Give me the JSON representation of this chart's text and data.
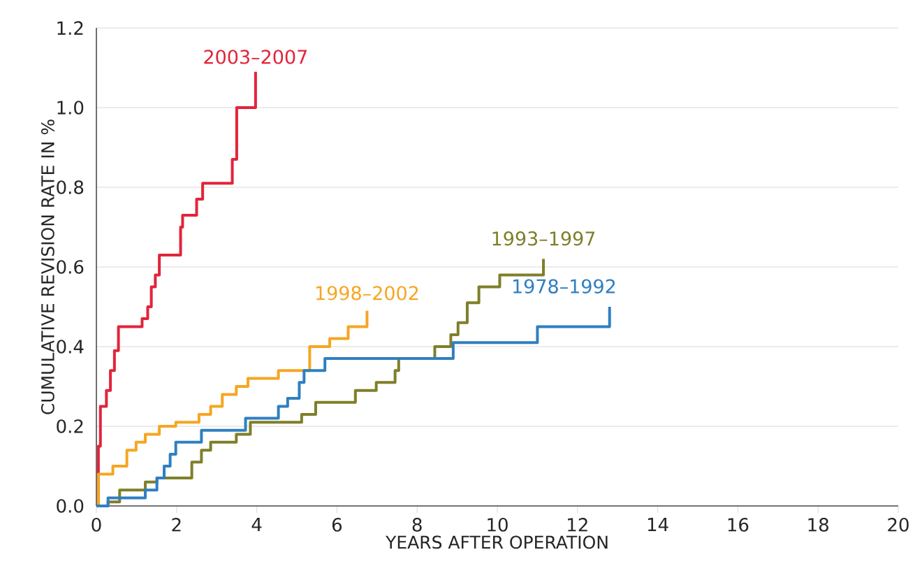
{
  "chart_data": {
    "type": "step",
    "xlabel": "YEARS AFTER OPERATION",
    "ylabel": "CUMULATIVE REVISION RATE IN %",
    "xlim": [
      0,
      20
    ],
    "xticks": [
      0,
      2,
      4,
      6,
      8,
      10,
      12,
      14,
      16,
      18,
      20
    ],
    "ylim": [
      0,
      1.2
    ],
    "yticks": [
      {
        "value": 0,
        "label": "0.0"
      },
      {
        "value": 0.2,
        "label": "0.2"
      },
      {
        "value": 0.4,
        "label": "0.4"
      },
      {
        "value": 0.6,
        "label": "0.6"
      },
      {
        "value": 0.8,
        "label": "0.8"
      },
      {
        "value": 1.0,
        "label": "1.0"
      },
      {
        "value": 1.2,
        "label": "1.2"
      }
    ],
    "grid": "y",
    "legend": false,
    "marker": "none",
    "line_style": "solid",
    "series": [
      {
        "name": "2003–2007",
        "color": "#e2243a",
        "x": [
          0,
          0.05,
          0.1,
          0.25,
          0.35,
          0.45,
          0.55,
          1.14,
          1.28,
          1.37,
          1.47,
          1.57,
          2.1,
          2.15,
          2.5,
          2.65,
          3.39,
          3.5,
          3.97
        ],
        "values": [
          0,
          0.15,
          0.25,
          0.29,
          0.34,
          0.39,
          0.45,
          0.47,
          0.5,
          0.55,
          0.58,
          0.63,
          0.7,
          0.73,
          0.77,
          0.81,
          0.87,
          1.0,
          1.09
        ]
      },
      {
        "name": "1998–2002",
        "color": "#f5a623",
        "x": [
          0,
          0.05,
          0.41,
          0.76,
          0.99,
          1.22,
          1.57,
          1.98,
          2.56,
          2.85,
          3.14,
          3.49,
          3.78,
          4.54,
          5.32,
          5.82,
          6.28,
          6.75
        ],
        "values": [
          0,
          0.08,
          0.1,
          0.14,
          0.16,
          0.18,
          0.2,
          0.21,
          0.23,
          0.25,
          0.28,
          0.3,
          0.32,
          0.34,
          0.4,
          0.42,
          0.45,
          0.49
        ]
      },
      {
        "name": "1993–1997",
        "color": "#7f7f2a",
        "x": [
          0,
          0.29,
          0.58,
          1.22,
          1.51,
          2.38,
          2.62,
          2.85,
          3.49,
          3.84,
          5.12,
          5.47,
          6.46,
          6.98,
          7.45,
          7.54,
          8.44,
          8.84,
          9.02,
          9.25,
          9.54,
          10.06,
          11.15
        ],
        "values": [
          0,
          0.01,
          0.04,
          0.06,
          0.07,
          0.11,
          0.14,
          0.16,
          0.18,
          0.21,
          0.23,
          0.26,
          0.29,
          0.31,
          0.34,
          0.37,
          0.4,
          0.43,
          0.46,
          0.51,
          0.55,
          0.58,
          0.62
        ]
      },
      {
        "name": "1978–1992",
        "color": "#2f7fc1",
        "x": [
          0,
          0.29,
          1.22,
          1.51,
          1.69,
          1.84,
          1.98,
          2.62,
          3.72,
          4.54,
          4.77,
          5.06,
          5.18,
          5.7,
          8.9,
          11.0,
          12.8
        ],
        "values": [
          0,
          0.02,
          0.04,
          0.07,
          0.1,
          0.13,
          0.16,
          0.19,
          0.22,
          0.25,
          0.27,
          0.31,
          0.34,
          0.37,
          0.41,
          0.45,
          0.5
        ]
      }
    ]
  }
}
